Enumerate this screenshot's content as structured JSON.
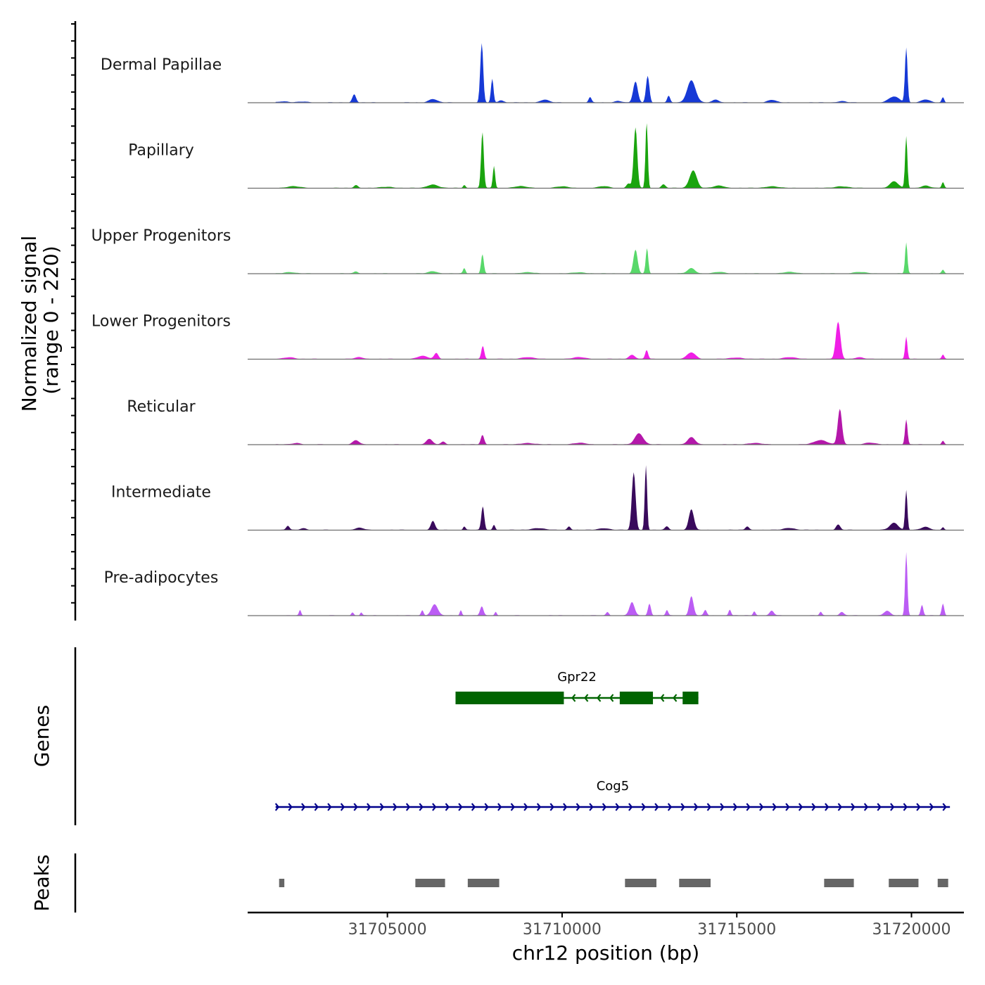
{
  "chart_data": {
    "type": "area",
    "title": "",
    "ylabel": "Normalized signal",
    "ylabel_range": "(range 0 - 220)",
    "xlabel": "chr12 position (bp)",
    "ylim": [
      0,
      220
    ],
    "xlim": [
      31701000,
      31721500
    ],
    "xticks": [
      31705000,
      31710000,
      31715000,
      31720000
    ],
    "xtick_labels": [
      "31705000",
      "31710000",
      "31715000",
      "31720000"
    ],
    "tracks_section_label": "Genes",
    "peaks_section_label": "Peaks",
    "series": [
      {
        "name": "Dermal Papillae",
        "color": "#1639d6",
        "peaks": [
          {
            "pos": 31702000,
            "h": 4,
            "w": 250
          },
          {
            "pos": 31702600,
            "h": 3,
            "w": 250
          },
          {
            "pos": 31704050,
            "h": 28,
            "w": 90
          },
          {
            "pos": 31706300,
            "h": 12,
            "w": 200
          },
          {
            "pos": 31707700,
            "h": 200,
            "w": 70
          },
          {
            "pos": 31708000,
            "h": 80,
            "w": 60
          },
          {
            "pos": 31708250,
            "h": 8,
            "w": 120
          },
          {
            "pos": 31709500,
            "h": 10,
            "w": 200
          },
          {
            "pos": 31710800,
            "h": 18,
            "w": 70
          },
          {
            "pos": 31711600,
            "h": 6,
            "w": 150
          },
          {
            "pos": 31712100,
            "h": 70,
            "w": 110
          },
          {
            "pos": 31712450,
            "h": 90,
            "w": 80
          },
          {
            "pos": 31713050,
            "h": 22,
            "w": 70
          },
          {
            "pos": 31713700,
            "h": 75,
            "w": 200
          },
          {
            "pos": 31714400,
            "h": 10,
            "w": 150
          },
          {
            "pos": 31716000,
            "h": 9,
            "w": 200
          },
          {
            "pos": 31718000,
            "h": 5,
            "w": 200
          },
          {
            "pos": 31719500,
            "h": 20,
            "w": 250
          },
          {
            "pos": 31719850,
            "h": 185,
            "w": 60
          },
          {
            "pos": 31720400,
            "h": 10,
            "w": 200
          },
          {
            "pos": 31720900,
            "h": 18,
            "w": 60
          }
        ]
      },
      {
        "name": "Papillary",
        "color": "#1aa40e",
        "peaks": [
          {
            "pos": 31702300,
            "h": 6,
            "w": 300
          },
          {
            "pos": 31704100,
            "h": 10,
            "w": 100
          },
          {
            "pos": 31705000,
            "h": 4,
            "w": 300
          },
          {
            "pos": 31706300,
            "h": 12,
            "w": 250
          },
          {
            "pos": 31707200,
            "h": 10,
            "w": 60
          },
          {
            "pos": 31707720,
            "h": 190,
            "w": 65
          },
          {
            "pos": 31708050,
            "h": 75,
            "w": 55
          },
          {
            "pos": 31708800,
            "h": 6,
            "w": 300
          },
          {
            "pos": 31710000,
            "h": 5,
            "w": 300
          },
          {
            "pos": 31711200,
            "h": 6,
            "w": 250
          },
          {
            "pos": 31711900,
            "h": 15,
            "w": 100
          },
          {
            "pos": 31712100,
            "h": 205,
            "w": 85
          },
          {
            "pos": 31712420,
            "h": 230,
            "w": 55
          },
          {
            "pos": 31712900,
            "h": 12,
            "w": 100
          },
          {
            "pos": 31713750,
            "h": 60,
            "w": 170
          },
          {
            "pos": 31714500,
            "h": 8,
            "w": 250
          },
          {
            "pos": 31716000,
            "h": 6,
            "w": 300
          },
          {
            "pos": 31718000,
            "h": 6,
            "w": 300
          },
          {
            "pos": 31719500,
            "h": 22,
            "w": 200
          },
          {
            "pos": 31719850,
            "h": 175,
            "w": 55
          },
          {
            "pos": 31720400,
            "h": 8,
            "w": 200
          },
          {
            "pos": 31720900,
            "h": 20,
            "w": 60
          }
        ]
      },
      {
        "name": "Upper Progenitors",
        "color": "#58d86a",
        "peaks": [
          {
            "pos": 31702200,
            "h": 5,
            "w": 250
          },
          {
            "pos": 31704100,
            "h": 7,
            "w": 100
          },
          {
            "pos": 31706300,
            "h": 8,
            "w": 200
          },
          {
            "pos": 31707200,
            "h": 18,
            "w": 60
          },
          {
            "pos": 31707720,
            "h": 65,
            "w": 65
          },
          {
            "pos": 31709000,
            "h": 4,
            "w": 300
          },
          {
            "pos": 31710500,
            "h": 4,
            "w": 300
          },
          {
            "pos": 31712100,
            "h": 80,
            "w": 100
          },
          {
            "pos": 31712430,
            "h": 85,
            "w": 60
          },
          {
            "pos": 31713700,
            "h": 18,
            "w": 180
          },
          {
            "pos": 31714500,
            "h": 5,
            "w": 250
          },
          {
            "pos": 31716500,
            "h": 5,
            "w": 300
          },
          {
            "pos": 31718500,
            "h": 5,
            "w": 300
          },
          {
            "pos": 31719850,
            "h": 105,
            "w": 55
          },
          {
            "pos": 31720900,
            "h": 12,
            "w": 60
          }
        ]
      },
      {
        "name": "Lower Progenitors",
        "color": "#f01ee6",
        "peaks": [
          {
            "pos": 31702200,
            "h": 6,
            "w": 250
          },
          {
            "pos": 31704200,
            "h": 6,
            "w": 200
          },
          {
            "pos": 31706000,
            "h": 10,
            "w": 250
          },
          {
            "pos": 31706400,
            "h": 20,
            "w": 100
          },
          {
            "pos": 31707730,
            "h": 45,
            "w": 70
          },
          {
            "pos": 31709000,
            "h": 6,
            "w": 300
          },
          {
            "pos": 31710500,
            "h": 6,
            "w": 300
          },
          {
            "pos": 31712000,
            "h": 14,
            "w": 150
          },
          {
            "pos": 31712420,
            "h": 30,
            "w": 70
          },
          {
            "pos": 31713700,
            "h": 22,
            "w": 200
          },
          {
            "pos": 31715000,
            "h": 5,
            "w": 300
          },
          {
            "pos": 31716500,
            "h": 6,
            "w": 300
          },
          {
            "pos": 31717900,
            "h": 125,
            "w": 110
          },
          {
            "pos": 31718500,
            "h": 6,
            "w": 200
          },
          {
            "pos": 31719850,
            "h": 75,
            "w": 55
          },
          {
            "pos": 31720900,
            "h": 15,
            "w": 60
          }
        ]
      },
      {
        "name": "Reticular",
        "color": "#b417aa",
        "peaks": [
          {
            "pos": 31702400,
            "h": 5,
            "w": 200
          },
          {
            "pos": 31704100,
            "h": 14,
            "w": 150
          },
          {
            "pos": 31706200,
            "h": 18,
            "w": 150
          },
          {
            "pos": 31706600,
            "h": 10,
            "w": 100
          },
          {
            "pos": 31707720,
            "h": 32,
            "w": 80
          },
          {
            "pos": 31709000,
            "h": 5,
            "w": 300
          },
          {
            "pos": 31710500,
            "h": 5,
            "w": 300
          },
          {
            "pos": 31712200,
            "h": 38,
            "w": 200
          },
          {
            "pos": 31713700,
            "h": 24,
            "w": 180
          },
          {
            "pos": 31715500,
            "h": 5,
            "w": 300
          },
          {
            "pos": 31717400,
            "h": 15,
            "w": 300
          },
          {
            "pos": 31717950,
            "h": 120,
            "w": 100
          },
          {
            "pos": 31718800,
            "h": 6,
            "w": 250
          },
          {
            "pos": 31719850,
            "h": 85,
            "w": 60
          },
          {
            "pos": 31720900,
            "h": 12,
            "w": 60
          }
        ]
      },
      {
        "name": "Intermediate",
        "color": "#390a5c",
        "peaks": [
          {
            "pos": 31702150,
            "h": 14,
            "w": 80
          },
          {
            "pos": 31702600,
            "h": 6,
            "w": 150
          },
          {
            "pos": 31704200,
            "h": 7,
            "w": 200
          },
          {
            "pos": 31706300,
            "h": 30,
            "w": 100
          },
          {
            "pos": 31707200,
            "h": 12,
            "w": 60
          },
          {
            "pos": 31707730,
            "h": 80,
            "w": 70
          },
          {
            "pos": 31708050,
            "h": 18,
            "w": 60
          },
          {
            "pos": 31709300,
            "h": 6,
            "w": 300
          },
          {
            "pos": 31710200,
            "h": 12,
            "w": 80
          },
          {
            "pos": 31711200,
            "h": 6,
            "w": 250
          },
          {
            "pos": 31712050,
            "h": 195,
            "w": 90
          },
          {
            "pos": 31712400,
            "h": 225,
            "w": 55
          },
          {
            "pos": 31713000,
            "h": 12,
            "w": 90
          },
          {
            "pos": 31713700,
            "h": 70,
            "w": 120
          },
          {
            "pos": 31715300,
            "h": 12,
            "w": 90
          },
          {
            "pos": 31716500,
            "h": 7,
            "w": 250
          },
          {
            "pos": 31717900,
            "h": 18,
            "w": 100
          },
          {
            "pos": 31719500,
            "h": 24,
            "w": 200
          },
          {
            "pos": 31719850,
            "h": 135,
            "w": 55
          },
          {
            "pos": 31720400,
            "h": 10,
            "w": 200
          },
          {
            "pos": 31720900,
            "h": 10,
            "w": 60
          }
        ]
      },
      {
        "name": "Pre-adipocytes",
        "color": "#bb5cf4",
        "peaks": [
          {
            "pos": 31702500,
            "h": 18,
            "w": 50
          },
          {
            "pos": 31704000,
            "h": 10,
            "w": 60
          },
          {
            "pos": 31704250,
            "h": 10,
            "w": 50
          },
          {
            "pos": 31706000,
            "h": 18,
            "w": 60
          },
          {
            "pos": 31706350,
            "h": 38,
            "w": 150
          },
          {
            "pos": 31707100,
            "h": 18,
            "w": 50
          },
          {
            "pos": 31707700,
            "h": 30,
            "w": 80
          },
          {
            "pos": 31708100,
            "h": 12,
            "w": 50
          },
          {
            "pos": 31711300,
            "h": 12,
            "w": 70
          },
          {
            "pos": 31712000,
            "h": 45,
            "w": 120
          },
          {
            "pos": 31712500,
            "h": 40,
            "w": 70
          },
          {
            "pos": 31713000,
            "h": 18,
            "w": 60
          },
          {
            "pos": 31713700,
            "h": 65,
            "w": 100
          },
          {
            "pos": 31714100,
            "h": 18,
            "w": 70
          },
          {
            "pos": 31714800,
            "h": 20,
            "w": 60
          },
          {
            "pos": 31715500,
            "h": 14,
            "w": 60
          },
          {
            "pos": 31716000,
            "h": 16,
            "w": 100
          },
          {
            "pos": 31717400,
            "h": 12,
            "w": 60
          },
          {
            "pos": 31718000,
            "h": 12,
            "w": 100
          },
          {
            "pos": 31719300,
            "h": 15,
            "w": 150
          },
          {
            "pos": 31719850,
            "h": 215,
            "w": 55
          },
          {
            "pos": 31720300,
            "h": 35,
            "w": 60
          },
          {
            "pos": 31720900,
            "h": 40,
            "w": 60
          }
        ]
      }
    ],
    "genes": [
      {
        "name": "Gpr22",
        "strand": "-",
        "color": "#006400",
        "start": 31706950,
        "end": 31713900,
        "exons": [
          [
            31706950,
            31710050
          ],
          [
            31711650,
            31712600
          ],
          [
            31713450,
            31713900
          ]
        ],
        "thick": [
          [
            31706950,
            31710000
          ],
          [
            31711700,
            31712550
          ],
          [
            31713500,
            31713900
          ]
        ]
      },
      {
        "name": "Cog5",
        "strand": "+",
        "color": "#00008b",
        "start": 31701800,
        "end": 31721100,
        "exons": [],
        "thick": []
      }
    ],
    "peak_regions": [
      [
        31701900,
        31702050
      ],
      [
        31705800,
        31706650
      ],
      [
        31707300,
        31708200
      ],
      [
        31711800,
        31712700
      ],
      [
        31713350,
        31714250
      ],
      [
        31717500,
        31718350
      ],
      [
        31719350,
        31720200
      ],
      [
        31720750,
        31721050
      ]
    ]
  }
}
